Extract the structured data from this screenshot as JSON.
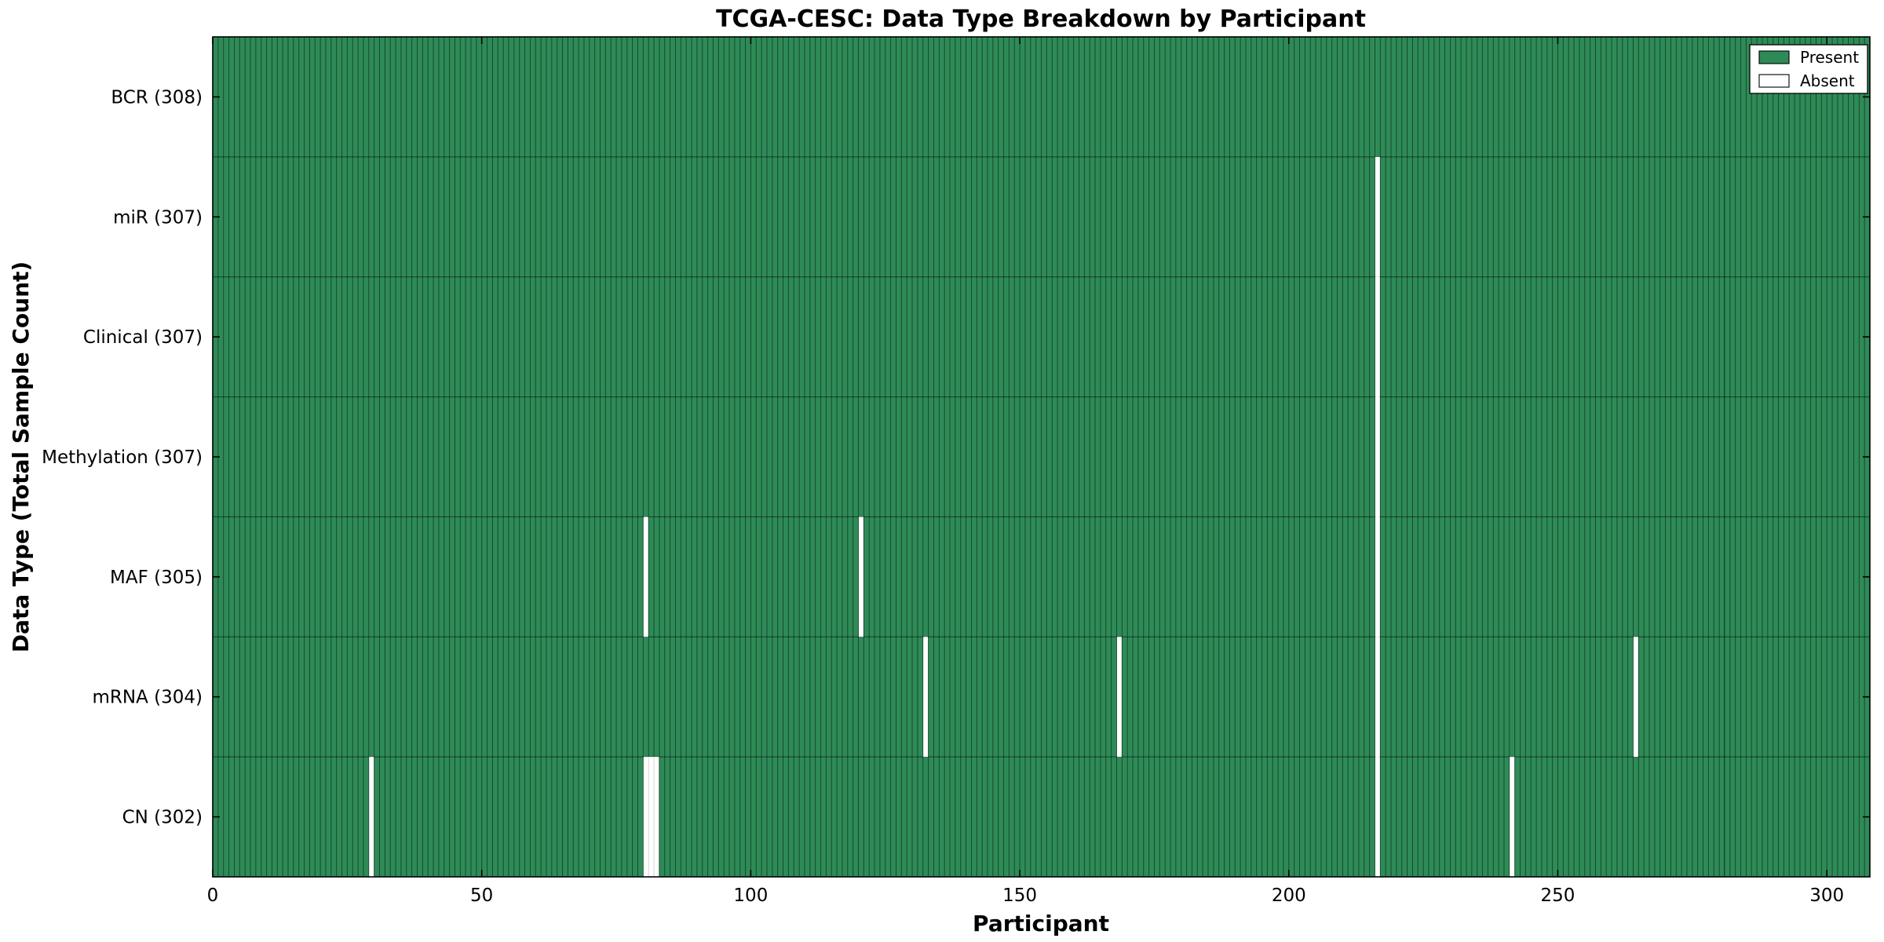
{
  "chart_data": {
    "type": "heatmap",
    "title": "TCGA-CESC: Data Type Breakdown by Participant",
    "xlabel": "Participant",
    "ylabel": "Data Type (Total Sample Count)",
    "x_ticks": [
      0,
      50,
      100,
      150,
      200,
      250,
      300
    ],
    "x_range": [
      0,
      308
    ],
    "n_participants": 308,
    "rows": [
      {
        "data_type": "BCR",
        "label": "BCR (308)",
        "total": 308,
        "absent_participants": []
      },
      {
        "data_type": "miR",
        "label": "miR (307)",
        "total": 307,
        "absent_participants": [
          216
        ]
      },
      {
        "data_type": "Clinical",
        "label": "Clinical (307)",
        "total": 307,
        "absent_participants": [
          216
        ]
      },
      {
        "data_type": "Methylation",
        "label": "Methylation (307)",
        "total": 307,
        "absent_participants": [
          216
        ]
      },
      {
        "data_type": "MAF",
        "label": "MAF (305)",
        "total": 305,
        "absent_participants": [
          80,
          120,
          216
        ]
      },
      {
        "data_type": "mRNA",
        "label": "mRNA (304)",
        "total": 304,
        "absent_participants": [
          132,
          168,
          216,
          264
        ]
      },
      {
        "data_type": "CN",
        "label": "CN (302)",
        "total": 302,
        "absent_participants": [
          29,
          80,
          81,
          82,
          216,
          241
        ]
      }
    ],
    "legend": {
      "position": "upper right",
      "entries": [
        {
          "key": "present",
          "label": "Present",
          "color": "#2e8b57"
        },
        {
          "key": "absent",
          "label": "Absent",
          "color": "#ffffff"
        }
      ]
    },
    "colors": {
      "present": "#2e8b57",
      "absent": "#ffffff",
      "bar_edge": "#000000",
      "spine": "#000000",
      "background": "#ffffff"
    },
    "grid": false
  }
}
